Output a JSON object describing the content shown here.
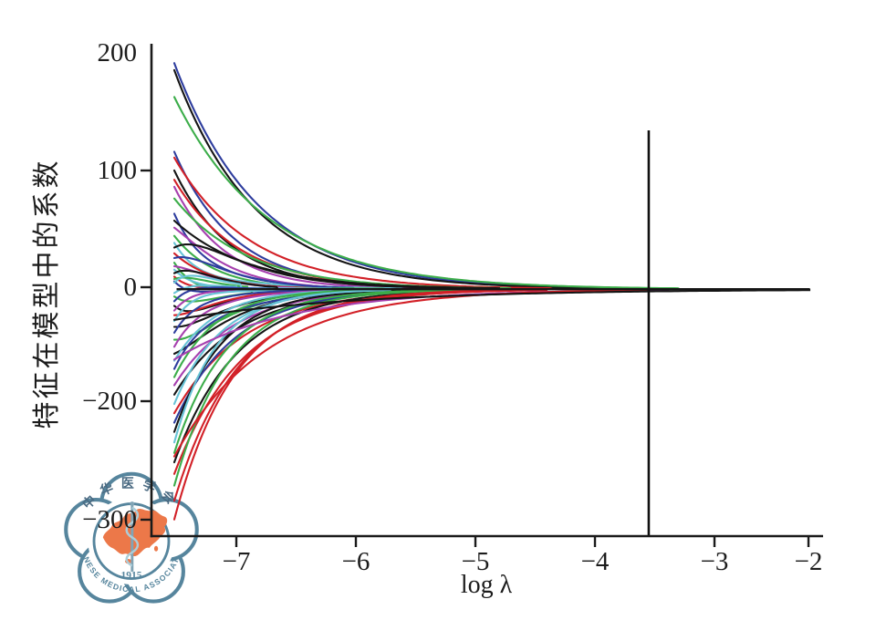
{
  "figure": {
    "background": "#ffffff"
  },
  "y_axis": {
    "title": "特征在模型中的系数",
    "tick_labels": [
      "200",
      "100",
      "0",
      "−200",
      "−300"
    ],
    "tick_has_mark": [
      false,
      true,
      true,
      true,
      true
    ]
  },
  "x_axis": {
    "title": "log λ",
    "tick_labels": [
      "−7",
      "−6",
      "−5",
      "−4",
      "−3",
      "−2"
    ],
    "tick_values": [
      -7,
      -6,
      -5,
      -4,
      -3,
      -2
    ]
  },
  "chart_data": {
    "type": "line",
    "title": "",
    "xlabel": "log λ",
    "ylabel": "特征在模型中的系数",
    "x_range": [
      -7.52,
      -1.99
    ],
    "y_tick_display": [
      "200",
      "100",
      "0",
      "−200",
      "−300"
    ],
    "legend": "none",
    "grid": false,
    "reference_line": {
      "orientation": "vertical",
      "log_lambda": -3.55
    },
    "zero_line": {
      "value": 0,
      "from_log_lambda": -7.5,
      "to_log_lambda": -1.99
    },
    "palette": {
      "black": "#151515",
      "red": "#d22027",
      "green": "#3cad4a",
      "blue": "#2e3d9e",
      "magenta": "#a63fae",
      "cyan": "#67c3d6"
    },
    "series": [
      {
        "color": "blue",
        "coef_start": 192,
        "zero_at_log_lambda": -3.6,
        "bump": 0
      },
      {
        "color": "black",
        "coef_start": 186,
        "zero_at_log_lambda": -3.8,
        "bump": 0
      },
      {
        "color": "green",
        "coef_start": 163,
        "zero_at_log_lambda": -3.29,
        "bump": 0
      },
      {
        "color": "blue",
        "coef_start": 116,
        "zero_at_log_lambda": -5.0,
        "bump": 0
      },
      {
        "color": "red",
        "coef_start": 111,
        "zero_at_log_lambda": -4.35,
        "bump": 0
      },
      {
        "color": "black",
        "coef_start": 100,
        "zero_at_log_lambda": -5.2,
        "bump": 0
      },
      {
        "color": "red",
        "coef_start": 92,
        "zero_at_log_lambda": -4.9,
        "bump": 0
      },
      {
        "color": "magenta",
        "coef_start": 86,
        "zero_at_log_lambda": -5.5,
        "bump": 0
      },
      {
        "color": "green",
        "coef_start": 76,
        "zero_at_log_lambda": -4.7,
        "bump": 0
      },
      {
        "color": "blue",
        "coef_start": 63,
        "zero_at_log_lambda": -5.8,
        "bump": -14
      },
      {
        "color": "black",
        "coef_start": 57,
        "zero_at_log_lambda": -4.8,
        "bump": 0
      },
      {
        "color": "magenta",
        "coef_start": 51,
        "zero_at_log_lambda": -5.9,
        "bump": 12
      },
      {
        "color": "green",
        "coef_start": 44,
        "zero_at_log_lambda": -6.1,
        "bump": 0
      },
      {
        "color": "cyan",
        "coef_start": 38,
        "zero_at_log_lambda": -5.6,
        "bump": -18
      },
      {
        "color": "black",
        "coef_start": 34,
        "zero_at_log_lambda": -5.1,
        "bump": 22
      },
      {
        "color": "red",
        "coef_start": 29,
        "zero_at_log_lambda": -6.3,
        "bump": 0
      },
      {
        "color": "blue",
        "coef_start": 25,
        "zero_at_log_lambda": -6.0,
        "bump": 18
      },
      {
        "color": "green",
        "coef_start": 21,
        "zero_at_log_lambda": -5.75,
        "bump": -24
      },
      {
        "color": "magenta",
        "coef_start": 18,
        "zero_at_log_lambda": -6.5,
        "bump": 10
      },
      {
        "color": "cyan",
        "coef_start": 15,
        "zero_at_log_lambda": -6.2,
        "bump": -12
      },
      {
        "color": "black",
        "coef_start": 12,
        "zero_at_log_lambda": -6.65,
        "bump": 20
      },
      {
        "color": "red",
        "coef_start": 9,
        "zero_at_log_lambda": -6.8,
        "bump": -10
      },
      {
        "color": "green",
        "coef_start": 7,
        "zero_at_log_lambda": -6.9,
        "bump": 14
      },
      {
        "color": "blue",
        "coef_start": 5,
        "zero_at_log_lambda": -7.0,
        "bump": -16
      },
      {
        "color": "cyan",
        "coef_start": 4,
        "zero_at_log_lambda": -6.95,
        "bump": 24
      },
      {
        "color": "cyan",
        "coef_start": -5,
        "zero_at_log_lambda": -7.0,
        "bump": 12
      },
      {
        "color": "green",
        "coef_start": -8,
        "zero_at_log_lambda": -6.85,
        "bump": -18
      },
      {
        "color": "blue",
        "coef_start": -12,
        "zero_at_log_lambda": -6.7,
        "bump": 16
      },
      {
        "color": "black",
        "coef_start": -16,
        "zero_at_log_lambda": -6.55,
        "bump": -26
      },
      {
        "color": "magenta",
        "coef_start": -20,
        "zero_at_log_lambda": -6.45,
        "bump": 14
      },
      {
        "color": "red",
        "coef_start": -24,
        "zero_at_log_lambda": -6.35,
        "bump": -12
      },
      {
        "color": "cyan",
        "coef_start": -29,
        "zero_at_log_lambda": -6.15,
        "bump": 20
      },
      {
        "color": "black",
        "coef_start": -34,
        "zero_at_log_lambda": -5.9,
        "bump": -16
      },
      {
        "color": "blue",
        "coef_start": -39,
        "zero_at_log_lambda": -6.25,
        "bump": 12
      },
      {
        "color": "green",
        "coef_start": -45,
        "zero_at_log_lambda": -5.7,
        "bump": -20
      },
      {
        "color": "magenta",
        "coef_start": -51,
        "zero_at_log_lambda": -6.0,
        "bump": 10
      },
      {
        "color": "black",
        "coef_start": -57,
        "zero_at_log_lambda": -5.5,
        "bump": -14
      },
      {
        "color": "cyan",
        "coef_start": -63,
        "zero_at_log_lambda": -5.95,
        "bump": 0
      },
      {
        "color": "blue",
        "coef_start": -70,
        "zero_at_log_lambda": -5.3,
        "bump": 16
      },
      {
        "color": "green",
        "coef_start": -77,
        "zero_at_log_lambda": -5.85,
        "bump": 0
      },
      {
        "color": "magenta",
        "coef_start": -84,
        "zero_at_log_lambda": -5.15,
        "bump": 0
      },
      {
        "color": "black",
        "coef_start": -92,
        "zero_at_log_lambda": -4.95,
        "bump": 0
      },
      {
        "color": "cyan",
        "coef_start": -100,
        "zero_at_log_lambda": -5.6,
        "bump": 0
      },
      {
        "color": "red",
        "coef_start": -108,
        "zero_at_log_lambda": -4.6,
        "bump": 0
      },
      {
        "color": "blue",
        "coef_start": -116,
        "zero_at_log_lambda": -5.0,
        "bump": 0
      },
      {
        "color": "black",
        "coef_start": -124,
        "zero_at_log_lambda": -5.45,
        "bump": 0
      },
      {
        "color": "cyan",
        "coef_start": -133,
        "zero_at_log_lambda": -5.7,
        "bump": 0
      },
      {
        "color": "green",
        "coef_start": -142,
        "zero_at_log_lambda": -5.25,
        "bump": 0
      },
      {
        "color": "black",
        "coef_start": -150,
        "zero_at_log_lambda": -4.75,
        "bump": 0
      },
      {
        "color": "red",
        "coef_start": -160,
        "zero_at_log_lambda": -4.4,
        "bump": 0
      },
      {
        "color": "green",
        "coef_start": -170,
        "zero_at_log_lambda": -5.05,
        "bump": 0
      },
      {
        "color": "red",
        "coef_start": -183,
        "zero_at_log_lambda": -4.6,
        "bump": 0
      },
      {
        "color": "red",
        "coef_start": -199,
        "zero_at_log_lambda": -4.7,
        "bump": 0
      },
      {
        "color": "magenta",
        "coef_start": -62,
        "zero_at_log_lambda": -3.38,
        "bump": 0
      },
      {
        "color": "red",
        "coef_start": -145,
        "zero_at_log_lambda": -3.55,
        "bump": 0
      },
      {
        "color": "black",
        "coef_start": -28,
        "zero_at_log_lambda": -1.99,
        "bump": 0
      }
    ]
  },
  "watermark_logo": {
    "organization_cn": "中华医学会",
    "organization_en": "CHINESE MEDICAL ASSOCIATION",
    "year": "1915",
    "outline_color": "#4e7f98",
    "map_color": "#ec7140",
    "snake_color": "#a8cbd6"
  }
}
